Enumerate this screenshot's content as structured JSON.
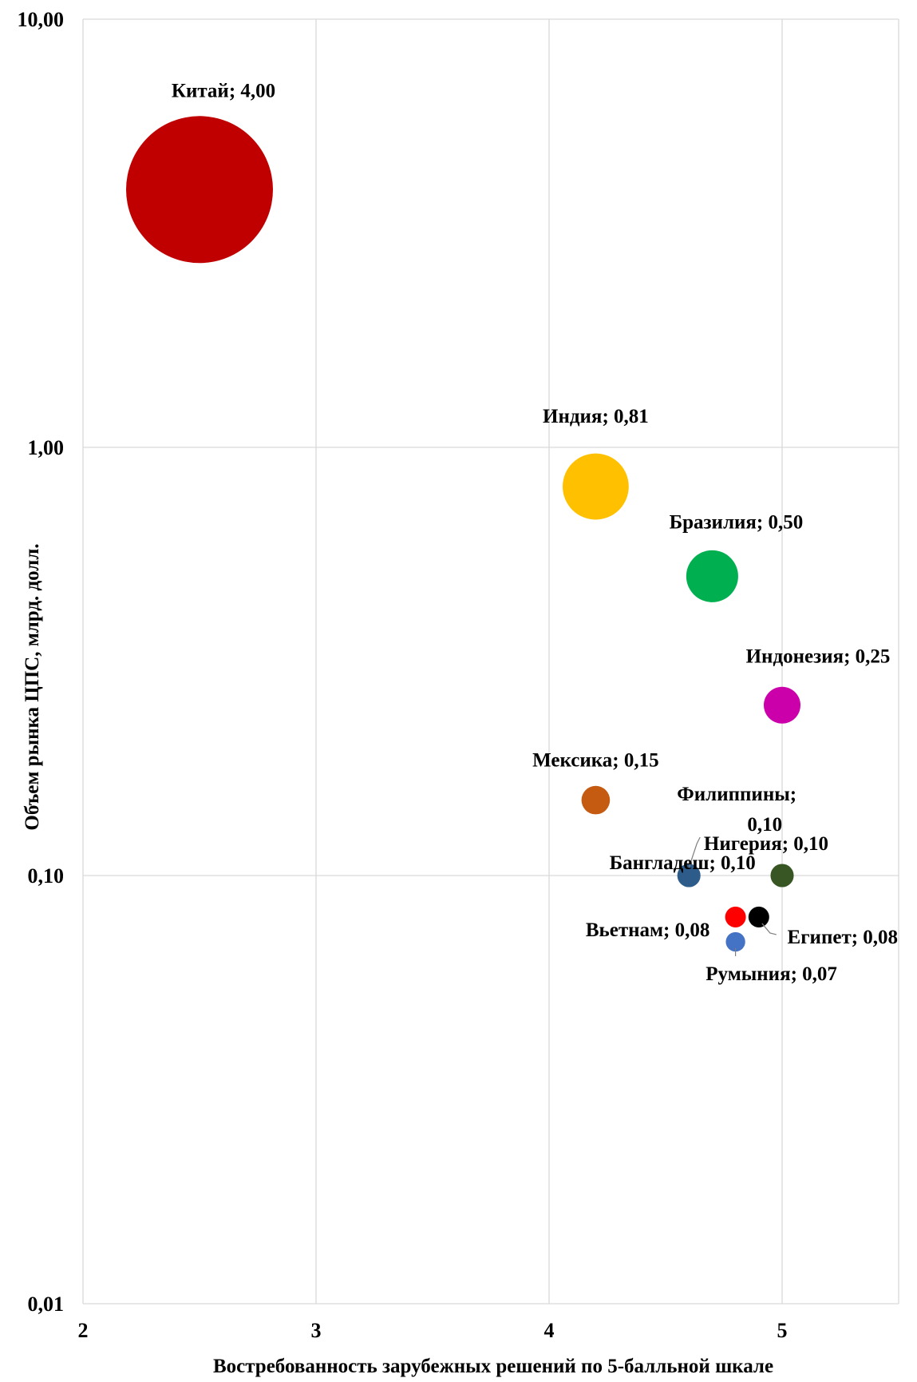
{
  "chart_data": {
    "type": "scatter",
    "subtype": "bubble",
    "title": "",
    "xlabel": "Востребованность зарубежных решений по 5-балльной шкале",
    "ylabel": "Объем рынка ЦПС, млрд. долл.",
    "xlim": [
      2,
      5.5
    ],
    "ylim": [
      0.01,
      10
    ],
    "y_scale": "log",
    "x_ticks": [
      "2",
      "3",
      "4",
      "5"
    ],
    "y_ticks": [
      "0,01",
      "0,10",
      "1,00",
      "10,00"
    ],
    "grid": true,
    "legend": "none",
    "points": [
      {
        "label": "Китай; 4,00",
        "x": 2.5,
        "y": 4.0,
        "size": 4.0,
        "color": "#c00000"
      },
      {
        "label": "Индия; 0,81",
        "x": 4.2,
        "y": 0.81,
        "size": 0.81,
        "color": "#ffc000"
      },
      {
        "label": "Бразилия; 0,50",
        "x": 4.7,
        "y": 0.5,
        "size": 0.5,
        "color": "#00b050"
      },
      {
        "label": "Индонезия; 0,25",
        "x": 5.0,
        "y": 0.25,
        "size": 0.25,
        "color": "#cc00aa"
      },
      {
        "label": "Мексика; 0,15",
        "x": 4.2,
        "y": 0.15,
        "size": 0.15,
        "color": "#c55a11"
      },
      {
        "label": "Филиппины; 0,10",
        "x": 4.6,
        "y": 0.1,
        "size": 0.1,
        "color": "#7f7f7f"
      },
      {
        "label": "Бангладеш; 0,10",
        "x": 4.6,
        "y": 0.1,
        "size": 0.1,
        "color": "#2e5c8a"
      },
      {
        "label": "Нигерия; 0,10",
        "x": 5.0,
        "y": 0.1,
        "size": 0.1,
        "color": "#375623"
      },
      {
        "label": "Вьетнам; 0,08",
        "x": 4.8,
        "y": 0.08,
        "size": 0.08,
        "color": "#ff0000"
      },
      {
        "label": "Египет; 0,08",
        "x": 4.9,
        "y": 0.08,
        "size": 0.08,
        "color": "#000000"
      },
      {
        "label": "Румыния; 0,07",
        "x": 4.8,
        "y": 0.07,
        "size": 0.07,
        "color": "#4472c4"
      }
    ]
  }
}
